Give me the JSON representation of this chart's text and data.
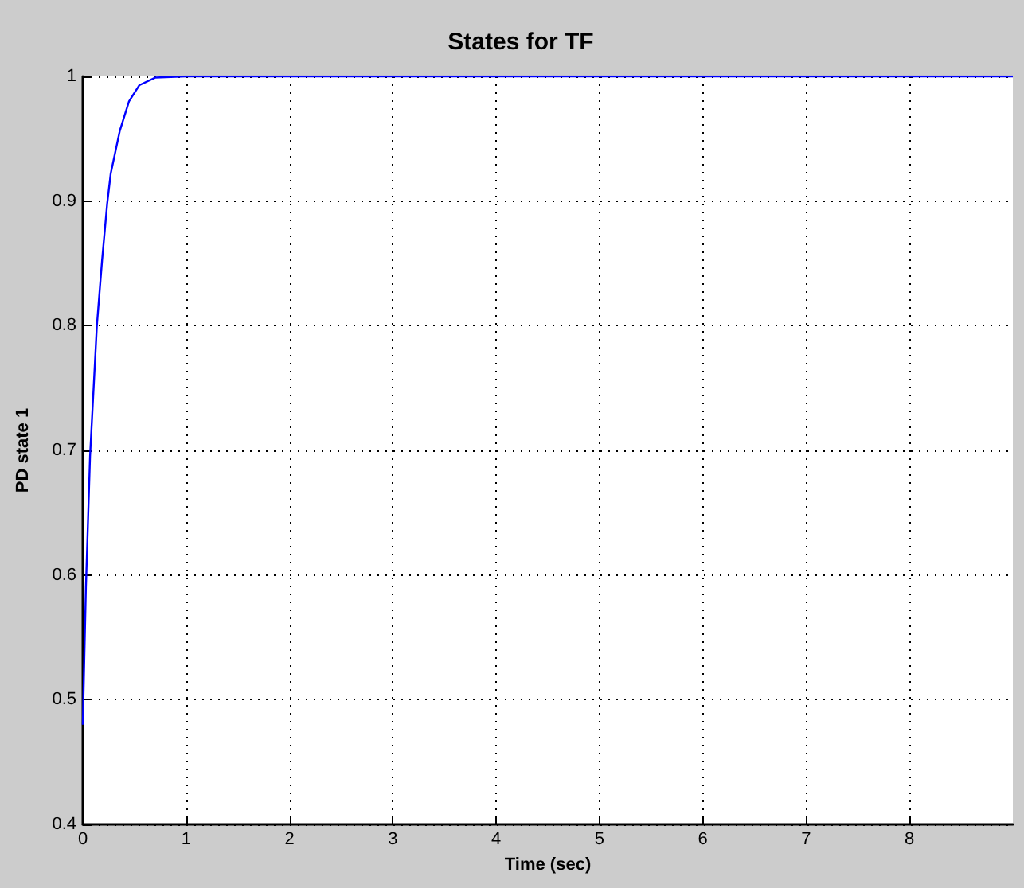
{
  "chart_data": {
    "type": "line",
    "title": "States for TF",
    "xlabel": "Time (sec)",
    "ylabel": "PD state 1",
    "series": [
      {
        "color": "#0000ff",
        "x": [
          0,
          0.03,
          0.07,
          0.136,
          0.186,
          0.236,
          0.27,
          0.357,
          0.447,
          0.548,
          0.7,
          1,
          9
        ],
        "values": [
          0.48,
          0.59,
          0.695,
          0.8,
          0.852,
          0.898,
          0.922,
          0.956,
          0.98,
          0.993,
          0.999,
          1,
          1
        ]
      }
    ],
    "xlim": [
      0,
      9
    ],
    "xticks": [
      0,
      1,
      2,
      3,
      4,
      5,
      6,
      7,
      8
    ],
    "ylim": [
      0.4,
      1
    ],
    "yticks": [
      0.4,
      0.5,
      0.6,
      0.7,
      0.8,
      0.9,
      1
    ],
    "grid": true,
    "marker": "none",
    "line_style": "solid"
  }
}
